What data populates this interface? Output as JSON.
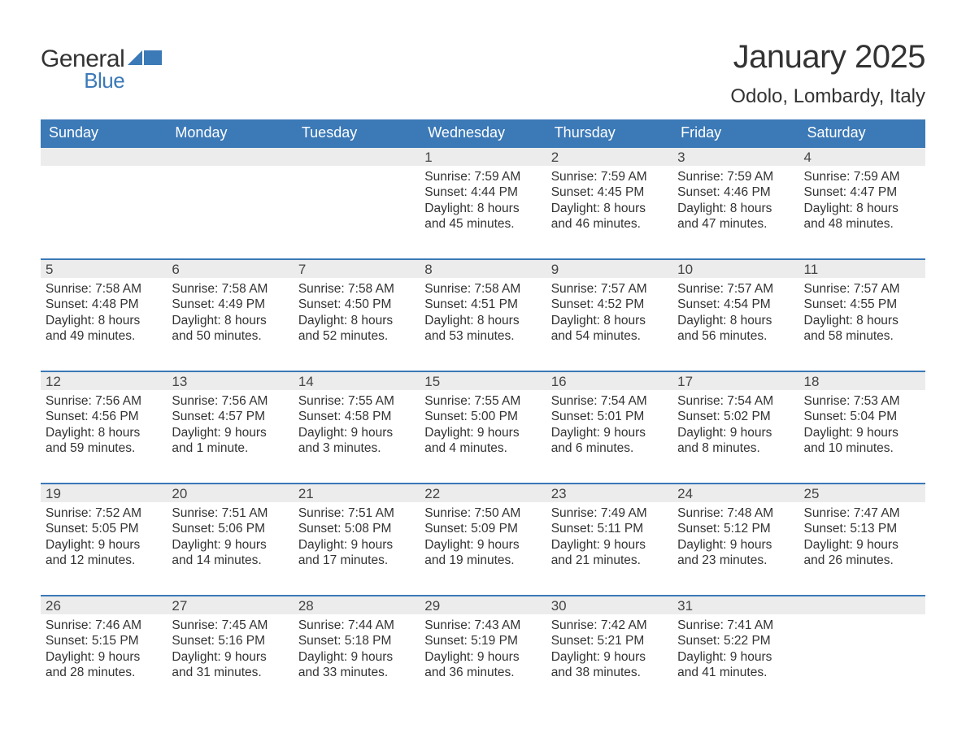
{
  "logo": {
    "general": "General",
    "blue": "Blue",
    "shape_color": "#3b79b7"
  },
  "title": "January 2025",
  "location": "Odolo, Lombardy, Italy",
  "colors": {
    "header_bg": "#3b79b7",
    "header_text": "#ffffff",
    "daybar_bg": "#ececec",
    "daybar_border": "#3b79b7",
    "text": "#333333",
    "background": "#ffffff"
  },
  "dayNames": [
    "Sunday",
    "Monday",
    "Tuesday",
    "Wednesday",
    "Thursday",
    "Friday",
    "Saturday"
  ],
  "weeks": [
    [
      null,
      null,
      null,
      {
        "n": 1,
        "sunrise": "Sunrise: 7:59 AM",
        "sunset": "Sunset: 4:44 PM",
        "d1": "Daylight: 8 hours",
        "d2": "and 45 minutes."
      },
      {
        "n": 2,
        "sunrise": "Sunrise: 7:59 AM",
        "sunset": "Sunset: 4:45 PM",
        "d1": "Daylight: 8 hours",
        "d2": "and 46 minutes."
      },
      {
        "n": 3,
        "sunrise": "Sunrise: 7:59 AM",
        "sunset": "Sunset: 4:46 PM",
        "d1": "Daylight: 8 hours",
        "d2": "and 47 minutes."
      },
      {
        "n": 4,
        "sunrise": "Sunrise: 7:59 AM",
        "sunset": "Sunset: 4:47 PM",
        "d1": "Daylight: 8 hours",
        "d2": "and 48 minutes."
      }
    ],
    [
      {
        "n": 5,
        "sunrise": "Sunrise: 7:58 AM",
        "sunset": "Sunset: 4:48 PM",
        "d1": "Daylight: 8 hours",
        "d2": "and 49 minutes."
      },
      {
        "n": 6,
        "sunrise": "Sunrise: 7:58 AM",
        "sunset": "Sunset: 4:49 PM",
        "d1": "Daylight: 8 hours",
        "d2": "and 50 minutes."
      },
      {
        "n": 7,
        "sunrise": "Sunrise: 7:58 AM",
        "sunset": "Sunset: 4:50 PM",
        "d1": "Daylight: 8 hours",
        "d2": "and 52 minutes."
      },
      {
        "n": 8,
        "sunrise": "Sunrise: 7:58 AM",
        "sunset": "Sunset: 4:51 PM",
        "d1": "Daylight: 8 hours",
        "d2": "and 53 minutes."
      },
      {
        "n": 9,
        "sunrise": "Sunrise: 7:57 AM",
        "sunset": "Sunset: 4:52 PM",
        "d1": "Daylight: 8 hours",
        "d2": "and 54 minutes."
      },
      {
        "n": 10,
        "sunrise": "Sunrise: 7:57 AM",
        "sunset": "Sunset: 4:54 PM",
        "d1": "Daylight: 8 hours",
        "d2": "and 56 minutes."
      },
      {
        "n": 11,
        "sunrise": "Sunrise: 7:57 AM",
        "sunset": "Sunset: 4:55 PM",
        "d1": "Daylight: 8 hours",
        "d2": "and 58 minutes."
      }
    ],
    [
      {
        "n": 12,
        "sunrise": "Sunrise: 7:56 AM",
        "sunset": "Sunset: 4:56 PM",
        "d1": "Daylight: 8 hours",
        "d2": "and 59 minutes."
      },
      {
        "n": 13,
        "sunrise": "Sunrise: 7:56 AM",
        "sunset": "Sunset: 4:57 PM",
        "d1": "Daylight: 9 hours",
        "d2": "and 1 minute."
      },
      {
        "n": 14,
        "sunrise": "Sunrise: 7:55 AM",
        "sunset": "Sunset: 4:58 PM",
        "d1": "Daylight: 9 hours",
        "d2": "and 3 minutes."
      },
      {
        "n": 15,
        "sunrise": "Sunrise: 7:55 AM",
        "sunset": "Sunset: 5:00 PM",
        "d1": "Daylight: 9 hours",
        "d2": "and 4 minutes."
      },
      {
        "n": 16,
        "sunrise": "Sunrise: 7:54 AM",
        "sunset": "Sunset: 5:01 PM",
        "d1": "Daylight: 9 hours",
        "d2": "and 6 minutes."
      },
      {
        "n": 17,
        "sunrise": "Sunrise: 7:54 AM",
        "sunset": "Sunset: 5:02 PM",
        "d1": "Daylight: 9 hours",
        "d2": "and 8 minutes."
      },
      {
        "n": 18,
        "sunrise": "Sunrise: 7:53 AM",
        "sunset": "Sunset: 5:04 PM",
        "d1": "Daylight: 9 hours",
        "d2": "and 10 minutes."
      }
    ],
    [
      {
        "n": 19,
        "sunrise": "Sunrise: 7:52 AM",
        "sunset": "Sunset: 5:05 PM",
        "d1": "Daylight: 9 hours",
        "d2": "and 12 minutes."
      },
      {
        "n": 20,
        "sunrise": "Sunrise: 7:51 AM",
        "sunset": "Sunset: 5:06 PM",
        "d1": "Daylight: 9 hours",
        "d2": "and 14 minutes."
      },
      {
        "n": 21,
        "sunrise": "Sunrise: 7:51 AM",
        "sunset": "Sunset: 5:08 PM",
        "d1": "Daylight: 9 hours",
        "d2": "and 17 minutes."
      },
      {
        "n": 22,
        "sunrise": "Sunrise: 7:50 AM",
        "sunset": "Sunset: 5:09 PM",
        "d1": "Daylight: 9 hours",
        "d2": "and 19 minutes."
      },
      {
        "n": 23,
        "sunrise": "Sunrise: 7:49 AM",
        "sunset": "Sunset: 5:11 PM",
        "d1": "Daylight: 9 hours",
        "d2": "and 21 minutes."
      },
      {
        "n": 24,
        "sunrise": "Sunrise: 7:48 AM",
        "sunset": "Sunset: 5:12 PM",
        "d1": "Daylight: 9 hours",
        "d2": "and 23 minutes."
      },
      {
        "n": 25,
        "sunrise": "Sunrise: 7:47 AM",
        "sunset": "Sunset: 5:13 PM",
        "d1": "Daylight: 9 hours",
        "d2": "and 26 minutes."
      }
    ],
    [
      {
        "n": 26,
        "sunrise": "Sunrise: 7:46 AM",
        "sunset": "Sunset: 5:15 PM",
        "d1": "Daylight: 9 hours",
        "d2": "and 28 minutes."
      },
      {
        "n": 27,
        "sunrise": "Sunrise: 7:45 AM",
        "sunset": "Sunset: 5:16 PM",
        "d1": "Daylight: 9 hours",
        "d2": "and 31 minutes."
      },
      {
        "n": 28,
        "sunrise": "Sunrise: 7:44 AM",
        "sunset": "Sunset: 5:18 PM",
        "d1": "Daylight: 9 hours",
        "d2": "and 33 minutes."
      },
      {
        "n": 29,
        "sunrise": "Sunrise: 7:43 AM",
        "sunset": "Sunset: 5:19 PM",
        "d1": "Daylight: 9 hours",
        "d2": "and 36 minutes."
      },
      {
        "n": 30,
        "sunrise": "Sunrise: 7:42 AM",
        "sunset": "Sunset: 5:21 PM",
        "d1": "Daylight: 9 hours",
        "d2": "and 38 minutes."
      },
      {
        "n": 31,
        "sunrise": "Sunrise: 7:41 AM",
        "sunset": "Sunset: 5:22 PM",
        "d1": "Daylight: 9 hours",
        "d2": "and 41 minutes."
      },
      null
    ]
  ]
}
